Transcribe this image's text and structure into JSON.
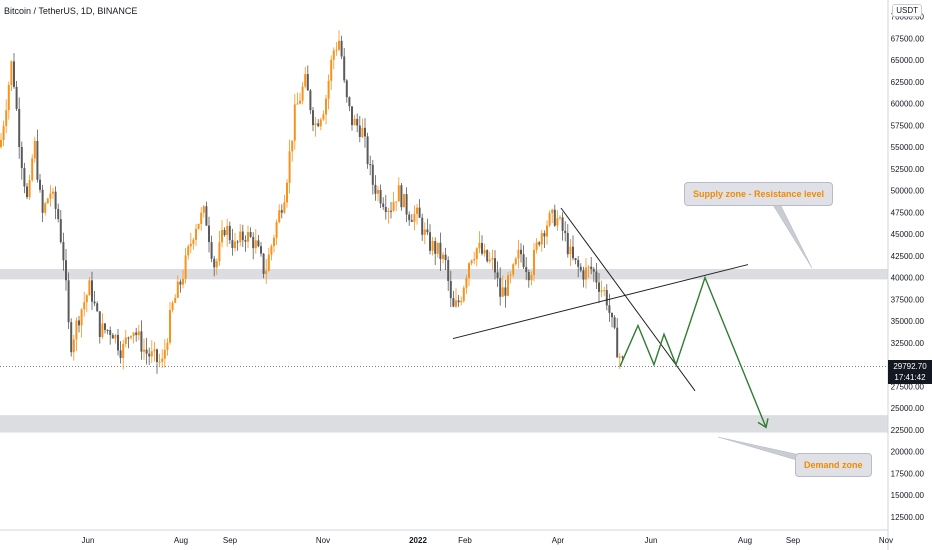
{
  "header": {
    "title": "Bitcoin / TetherUS, 1D, BINANCE",
    "currency": "USDT"
  },
  "price_tag": {
    "price": "29792.70",
    "countdown": "17:41:42"
  },
  "callouts": {
    "supply": "Supply zone - Resistance level",
    "demand": "Demand zone"
  },
  "colors": {
    "up_candle": "#f7931a",
    "down_candle": "#5a5a5a",
    "zone": "#dcdde0",
    "projection": "#2e7d32",
    "trendline": "#1e1e1e",
    "callout_text": "#f28a00"
  },
  "chart_data": {
    "type": "candlestick",
    "x_tick_labels": [
      "Jun",
      "Aug",
      "Sep",
      "Nov",
      "2022",
      "Feb",
      "Apr",
      "Jun",
      "Aug",
      "Sep",
      "Nov"
    ],
    "y_tick_labels": [
      70000,
      67500,
      65000,
      62500,
      60000,
      57500,
      55000,
      52500,
      50000,
      47500,
      45000,
      42500,
      40000,
      37500,
      35000,
      32500,
      27500,
      25000,
      22500,
      20000,
      17500,
      15000,
      12500
    ],
    "ylim": [
      10500,
      71000
    ],
    "last_price": 29792.7,
    "zones": [
      {
        "name": "Supply zone - Resistance level",
        "low": 39800,
        "high": 41000
      },
      {
        "name": "Demand zone",
        "low": 22200,
        "high": 24200
      }
    ],
    "approx_path": [
      [
        0,
        55000
      ],
      [
        12,
        65000
      ],
      [
        20,
        55000
      ],
      [
        28,
        48000
      ],
      [
        34,
        56000
      ],
      [
        42,
        47000
      ],
      [
        50,
        50000
      ],
      [
        58,
        47000
      ],
      [
        64,
        42000
      ],
      [
        70,
        32000
      ],
      [
        80,
        36000
      ],
      [
        90,
        39000
      ],
      [
        100,
        34000
      ],
      [
        112,
        34000
      ],
      [
        122,
        31500
      ],
      [
        132,
        34500
      ],
      [
        145,
        31500
      ],
      [
        162,
        30000
      ],
      [
        172,
        36500
      ],
      [
        182,
        40000
      ],
      [
        195,
        46000
      ],
      [
        205,
        47500
      ],
      [
        215,
        41000
      ],
      [
        225,
        46000
      ],
      [
        235,
        43500
      ],
      [
        245,
        45000
      ],
      [
        255,
        44000
      ],
      [
        265,
        40500
      ],
      [
        275,
        45500
      ],
      [
        285,
        50000
      ],
      [
        295,
        59000
      ],
      [
        305,
        62500
      ],
      [
        315,
        57500
      ],
      [
        325,
        60000
      ],
      [
        333,
        66000
      ],
      [
        340,
        67500
      ],
      [
        345,
        61000
      ],
      [
        352,
        58000
      ],
      [
        362,
        57000
      ],
      [
        372,
        51000
      ],
      [
        380,
        49500
      ],
      [
        390,
        48000
      ],
      [
        398,
        50000
      ],
      [
        408,
        47500
      ],
      [
        418,
        47000
      ],
      [
        428,
        44000
      ],
      [
        438,
        43000
      ],
      [
        446,
        41500
      ],
      [
        452,
        36000
      ],
      [
        460,
        37500
      ],
      [
        470,
        42500
      ],
      [
        478,
        43500
      ],
      [
        486,
        42000
      ],
      [
        494,
        41500
      ],
      [
        500,
        38000
      ],
      [
        510,
        39500
      ],
      [
        520,
        43000
      ],
      [
        530,
        40500
      ],
      [
        540,
        45000
      ],
      [
        548,
        46500
      ],
      [
        556,
        47000
      ],
      [
        564,
        45000
      ],
      [
        572,
        42000
      ],
      [
        582,
        40500
      ],
      [
        592,
        41000
      ],
      [
        600,
        39000
      ],
      [
        606,
        38000
      ],
      [
        612,
        34500
      ],
      [
        618,
        31500
      ],
      [
        624,
        29800
      ]
    ],
    "trendlines": [
      {
        "from": [
          "Jan 24 2022",
          33000
        ],
        "to": [
          "Jul 2022",
          41500
        ]
      },
      {
        "from": [
          "Mar 29 2022",
          48000
        ],
        "to": [
          "Jun 2022",
          27000
        ]
      }
    ],
    "projection": [
      [
        620,
        29800
      ],
      [
        638,
        34500
      ],
      [
        654,
        30000
      ],
      [
        664,
        33500
      ],
      [
        676,
        30000
      ],
      [
        705,
        40000
      ],
      [
        766,
        22800
      ]
    ]
  }
}
